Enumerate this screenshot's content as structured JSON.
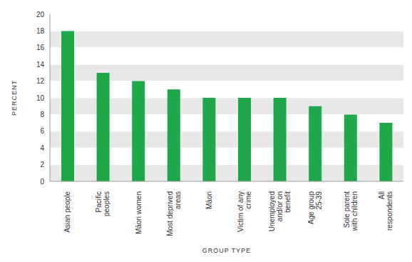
{
  "chart_data": {
    "type": "bar",
    "x_label": "GROUP TYPE",
    "y_label": "PERCENT",
    "categories": [
      "Asian people",
      "Pacific peoples",
      "Māori women",
      "Most deprived areas",
      "Māori",
      "Victim of any crime",
      "Unemployed and/or on benefit",
      "Age group 25-39",
      "Sole parent with children",
      "All respondents"
    ],
    "values": [
      18,
      13,
      12,
      11,
      10,
      10,
      10,
      9,
      8,
      7
    ],
    "color": "#1fa84a",
    "ylim": [
      0,
      20
    ],
    "yticks": [
      0,
      2,
      4,
      6,
      8,
      10,
      12,
      14,
      16,
      18,
      20
    ],
    "grid": true
  }
}
